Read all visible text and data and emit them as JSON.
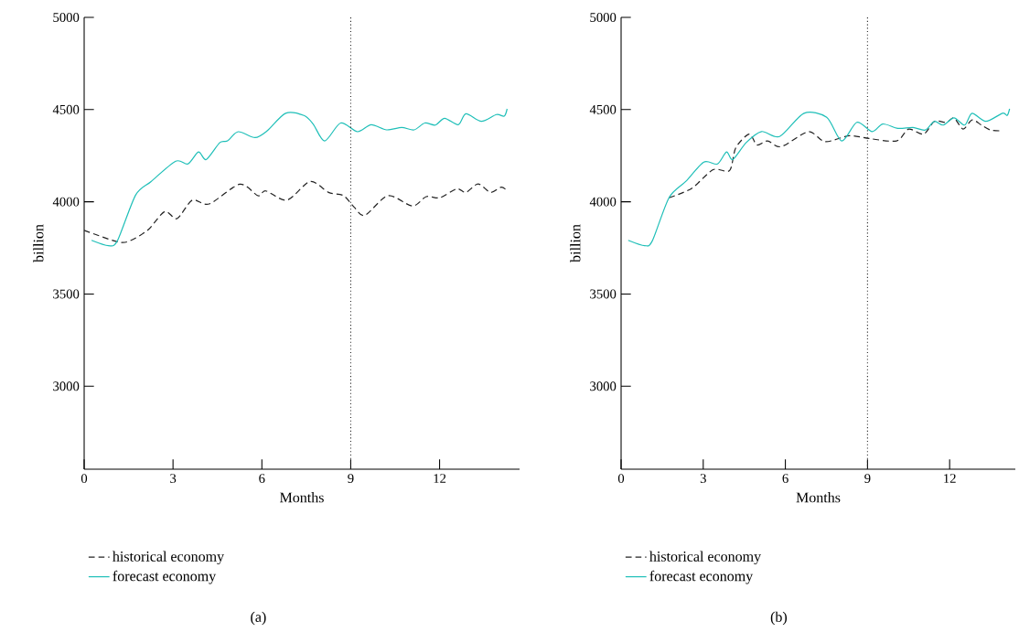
{
  "chart_data": [
    {
      "type": "line",
      "xlabel": "Months",
      "ylabel": "billion",
      "xlim": [
        0,
        14.7
      ],
      "ylim": [
        2550,
        5000
      ],
      "xticks": [
        0,
        3,
        6,
        9,
        12
      ],
      "yticks": [
        3000,
        3500,
        4000,
        4500,
        5000
      ],
      "legend": "bottom",
      "marker": "none",
      "grid": false,
      "ref_lines": [
        {
          "axis": "x",
          "value": 9,
          "line_style": "dotted",
          "color": "#222222"
        }
      ],
      "annotations": [
        "(a)"
      ],
      "series": [
        {
          "name": "historical economy",
          "color": "#222222",
          "line_style": "dashed",
          "x": [
            0,
            1.12,
            1.54,
            2.16,
            2.72,
            3.14,
            3.65,
            4.22,
            5.25,
            5.87,
            6.13,
            6.85,
            7.63,
            8.25,
            8.76,
            9.12,
            9.48,
            10.26,
            11.08,
            11.55,
            12.01,
            12.58,
            12.89,
            13.3,
            13.72,
            14.08,
            14.28
          ],
          "values": [
            3845,
            3783,
            3788,
            3848,
            3947,
            3909,
            4009,
            3988,
            4095,
            4033,
            4059,
            4009,
            4110,
            4051,
            4033,
            3970,
            3927,
            4033,
            3977,
            4028,
            4022,
            4070,
            4051,
            4097,
            4051,
            4079,
            4060
          ]
        },
        {
          "name": "forecast economy",
          "color": "#1fbfb8",
          "line_style": "solid",
          "x": [
            0.25,
            0.82,
            1.12,
            1.74,
            2.26,
            3.09,
            3.5,
            3.86,
            4.12,
            4.58,
            4.84,
            5.2,
            5.77,
            6.18,
            6.8,
            7.42,
            7.73,
            8.12,
            8.66,
            9.23,
            9.69,
            10.21,
            10.72,
            11.14,
            11.5,
            11.86,
            12.17,
            12.63,
            12.89,
            13.41,
            13.92,
            14.18,
            14.28
          ],
          "values": [
            3791,
            3762,
            3788,
            4037,
            4110,
            4220,
            4205,
            4270,
            4229,
            4321,
            4330,
            4380,
            4348,
            4385,
            4480,
            4468,
            4422,
            4330,
            4427,
            4380,
            4418,
            4390,
            4403,
            4390,
            4427,
            4416,
            4453,
            4418,
            4477,
            4436,
            4473,
            4464,
            4504
          ]
        }
      ]
    },
    {
      "type": "line",
      "xlabel": "Months",
      "ylabel": "billion",
      "xlim": [
        0,
        14.4
      ],
      "ylim": [
        2550,
        5000
      ],
      "xticks": [
        0,
        3,
        6,
        9,
        12
      ],
      "yticks": [
        3000,
        3500,
        4000,
        4500,
        5000
      ],
      "legend": "bottom",
      "marker": "none",
      "grid": false,
      "ref_lines": [
        {
          "axis": "x",
          "value": 9,
          "line_style": "dotted",
          "color": "#222222"
        }
      ],
      "annotations": [
        "(b)"
      ],
      "series": [
        {
          "name": "historical economy",
          "color": "#222222",
          "line_style": "dashed",
          "x": [
            1.75,
            2.58,
            3.36,
            3.96,
            4.19,
            4.68,
            4.96,
            5.35,
            5.85,
            6.84,
            7.45,
            8.34,
            9.06,
            10.06,
            10.5,
            11.05,
            11.44,
            11.88,
            12.16,
            12.49,
            12.82,
            13.16,
            13.49,
            13.85
          ],
          "values": [
            4022,
            4073,
            4174,
            4169,
            4293,
            4367,
            4308,
            4330,
            4299,
            4380,
            4326,
            4358,
            4343,
            4330,
            4394,
            4367,
            4436,
            4431,
            4455,
            4394,
            4444,
            4416,
            4389,
            4385
          ]
        },
        {
          "name": "forecast economy",
          "color": "#1fbfb8",
          "line_style": "solid",
          "x": [
            0.26,
            0.86,
            1.14,
            1.75,
            2.36,
            3.02,
            3.52,
            3.85,
            4.08,
            4.57,
            5.13,
            5.79,
            6.68,
            7.51,
            8.06,
            8.61,
            9.17,
            9.56,
            10.11,
            10.66,
            11.11,
            11.44,
            11.77,
            12.16,
            12.55,
            12.82,
            13.32,
            13.93,
            14.1,
            14.19
          ],
          "values": [
            3791,
            3762,
            3788,
            4022,
            4110,
            4215,
            4205,
            4270,
            4229,
            4321,
            4381,
            4354,
            4480,
            4458,
            4330,
            4431,
            4381,
            4422,
            4398,
            4403,
            4389,
            4436,
            4416,
            4455,
            4416,
            4480,
            4436,
            4480,
            4468,
            4504
          ]
        }
      ]
    }
  ]
}
